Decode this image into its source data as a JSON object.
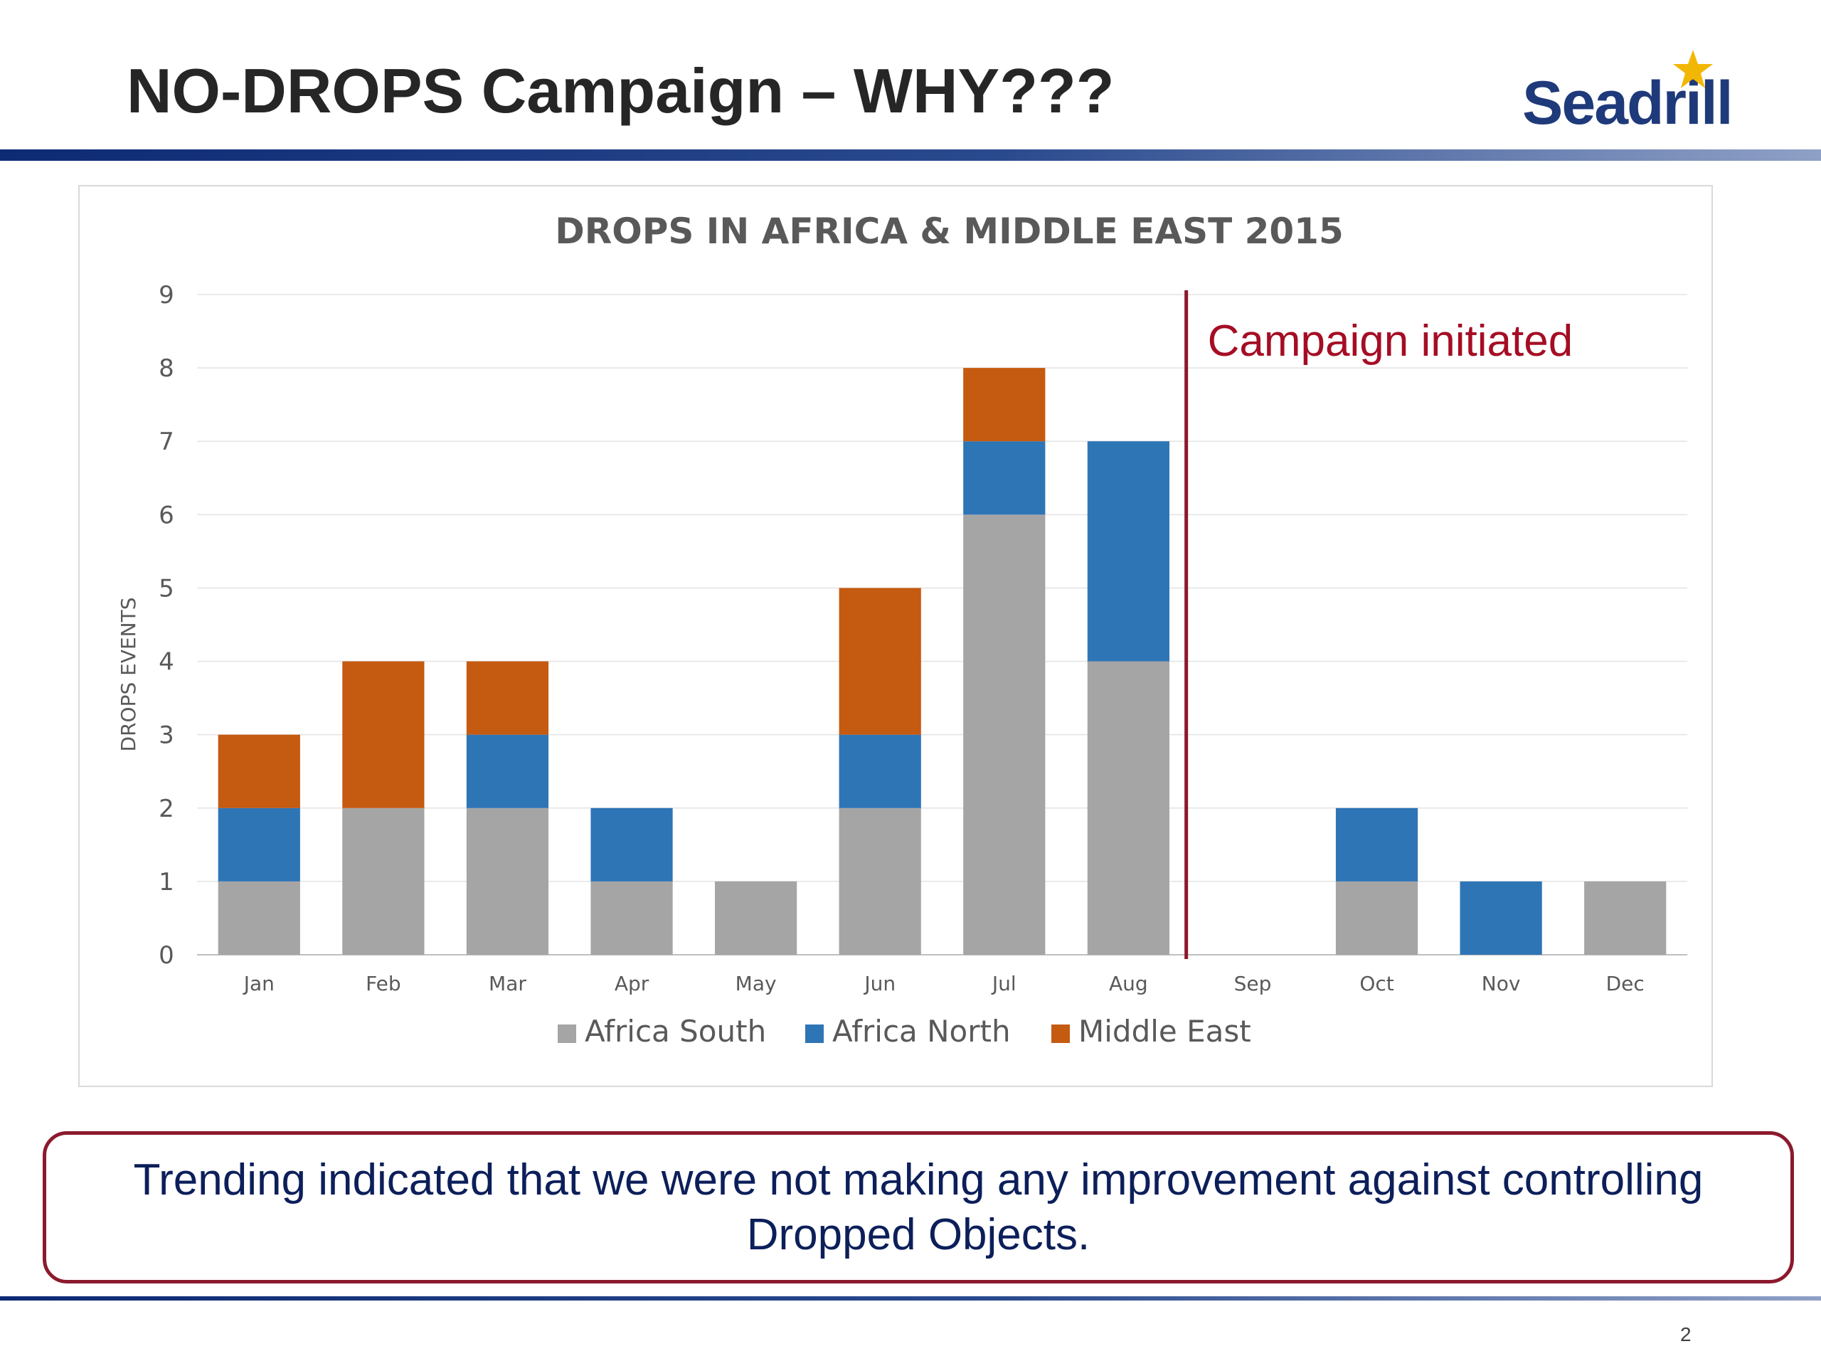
{
  "slide": {
    "title": "NO-DROPS Campaign – WHY???",
    "logo_text": "Seadrill",
    "callout": "Trending indicated that we were not making any improvement against controlling Dropped Objects.",
    "page_number": "2"
  },
  "colors": {
    "title": "#262626",
    "brand_blue": "#1f3a7a",
    "accent_red": "#8b1a2c",
    "callout_text": "#0c1f5a"
  },
  "chart_data": {
    "type": "bar",
    "stacked": true,
    "title": "DROPS IN AFRICA & MIDDLE EAST 2015",
    "xlabel": "",
    "ylabel": "DROPS EVENTS",
    "ylim": [
      0,
      9
    ],
    "yticks": [
      "0",
      "1",
      "2",
      "3",
      "4",
      "5",
      "6",
      "7",
      "8",
      "9"
    ],
    "grid": true,
    "legend_position": "bottom",
    "categories": [
      "Jan",
      "Feb",
      "Mar",
      "Apr",
      "May",
      "Jun",
      "Jul",
      "Aug",
      "Sep",
      "Oct",
      "Nov",
      "Dec"
    ],
    "series": [
      {
        "name": "Africa South",
        "color": "#a5a5a5",
        "values": [
          1,
          2,
          2,
          1,
          1,
          2,
          6,
          4,
          0,
          1,
          0,
          1
        ]
      },
      {
        "name": "Africa North",
        "color": "#2e75b6",
        "values": [
          1,
          0,
          1,
          1,
          0,
          1,
          1,
          3,
          0,
          1,
          1,
          0
        ]
      },
      {
        "name": "Middle East",
        "color": "#c55a11",
        "values": [
          1,
          2,
          1,
          0,
          0,
          2,
          1,
          0,
          0,
          0,
          0,
          0
        ]
      }
    ],
    "annotation": {
      "text": "Campaign initiated",
      "between": [
        "Aug",
        "Sep"
      ],
      "color": "#a50d24"
    }
  }
}
